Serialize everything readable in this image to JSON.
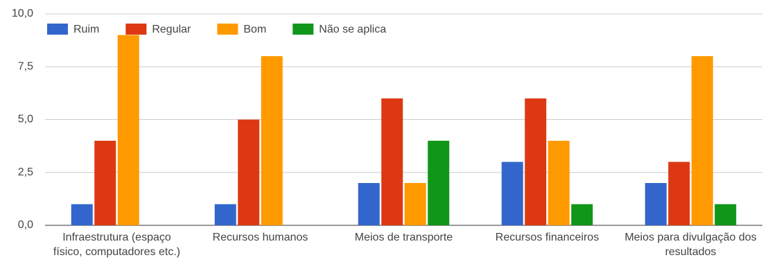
{
  "chart_data": {
    "type": "bar",
    "categories": [
      "Infraestrutura (espaço físico, computadores etc.)",
      "Recursos humanos",
      "Meios de transporte",
      "Recursos financeiros",
      "Meios para divulgação dos resultados"
    ],
    "series": [
      {
        "name": "Ruim",
        "color": "#3366cc",
        "values": [
          1,
          1,
          2,
          3,
          2
        ]
      },
      {
        "name": "Regular",
        "color": "#dc3912",
        "values": [
          4,
          5,
          6,
          6,
          3
        ]
      },
      {
        "name": "Bom",
        "color": "#ff9900",
        "values": [
          9,
          8,
          2,
          4,
          8
        ]
      },
      {
        "name": "Não se aplica",
        "color": "#109618",
        "values": [
          0,
          0,
          4,
          1,
          1
        ]
      }
    ],
    "ylim": [
      0,
      10
    ],
    "yticks": [
      {
        "value": 0,
        "label": "0,0"
      },
      {
        "value": 2.5,
        "label": "2,5"
      },
      {
        "value": 5,
        "label": "5,0"
      },
      {
        "value": 7.5,
        "label": "7,5"
      },
      {
        "value": 10,
        "label": "10,0"
      }
    ],
    "grid": true,
    "legend": "top-left"
  }
}
